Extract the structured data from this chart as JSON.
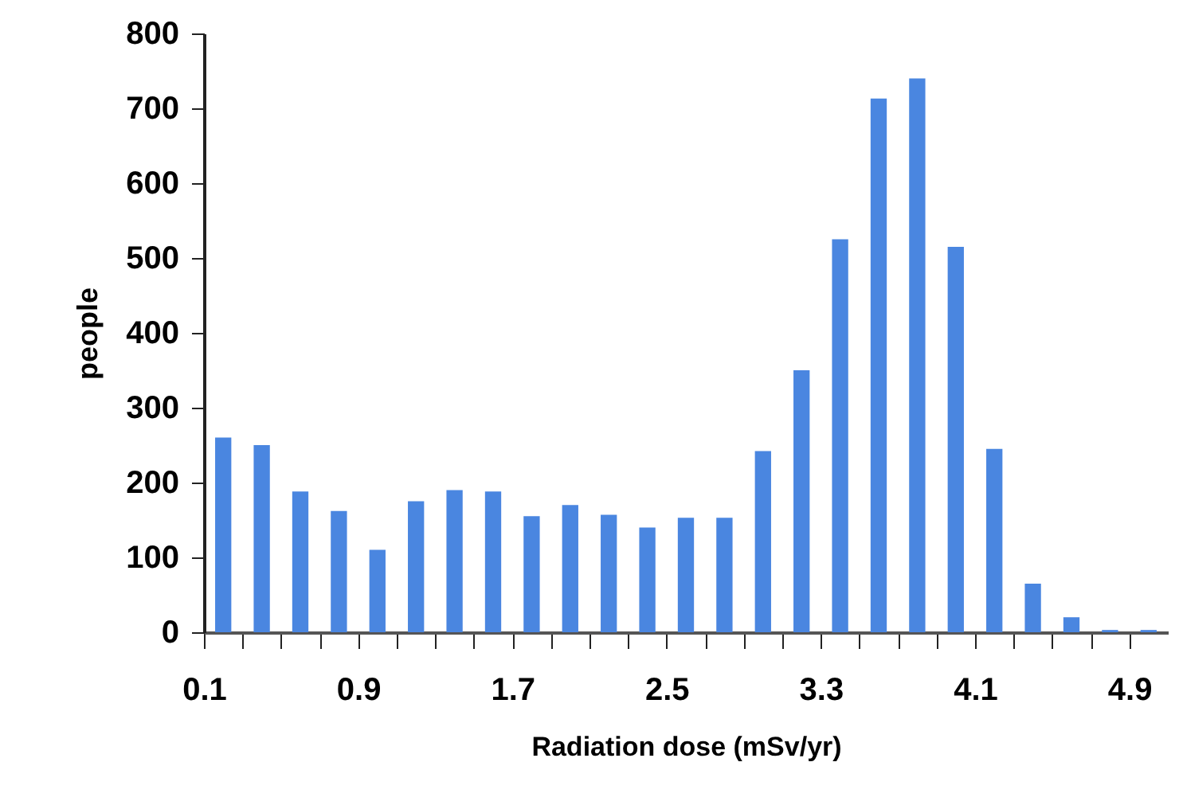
{
  "chart_data": {
    "type": "bar",
    "xlabel": "Radiation dose (mSv/yr)",
    "ylabel": "people",
    "categories": [
      "0.1",
      null,
      null,
      null,
      "0.9",
      null,
      null,
      null,
      "1.7",
      null,
      null,
      null,
      "2.5",
      null,
      null,
      null,
      "3.3",
      null,
      null,
      null,
      "4.1",
      null,
      null,
      null,
      "4.9"
    ],
    "values": [
      260,
      250,
      188,
      162,
      110,
      175,
      190,
      188,
      155,
      170,
      157,
      140,
      153,
      153,
      242,
      350,
      525,
      713,
      740,
      515,
      245,
      65,
      20,
      3,
      3
    ],
    "color": "#4a86e0",
    "ylim": [
      0,
      800
    ],
    "yticks": [
      0,
      100,
      200,
      300,
      400,
      500,
      600,
      700,
      800
    ],
    "grid": false
  }
}
